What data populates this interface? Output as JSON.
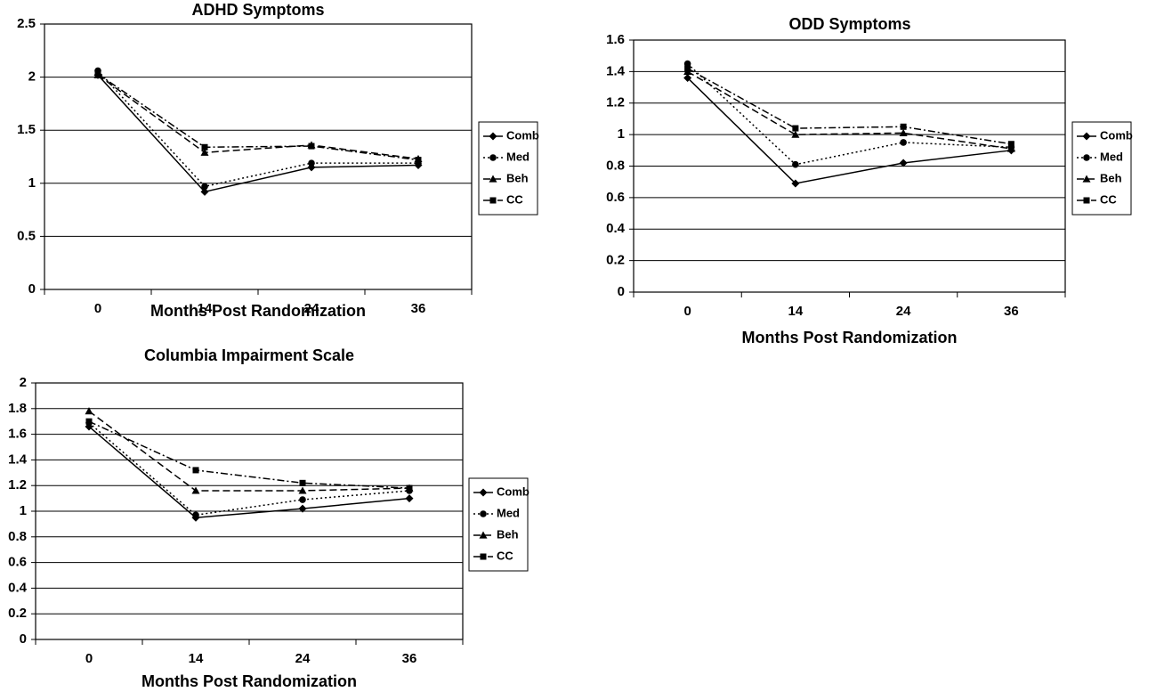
{
  "chart_data": [
    {
      "type": "line",
      "title": "ADHD Symptoms",
      "x_label": "Months Post Randomization",
      "categories": [
        "0",
        "14",
        "24",
        "36"
      ],
      "ylim": [
        0,
        2.5
      ],
      "yticks": [
        0,
        0.5,
        1,
        1.5,
        2,
        2.5
      ],
      "grid": true,
      "legend": "right",
      "series": [
        {
          "name": "Comb",
          "color": "#000000",
          "dash": "solid",
          "marker": "diamond",
          "values": [
            2.02,
            0.92,
            1.15,
            1.17
          ]
        },
        {
          "name": "Med",
          "color": "#000000",
          "dash": "dotted",
          "marker": "circle",
          "values": [
            2.06,
            0.97,
            1.19,
            1.19
          ]
        },
        {
          "name": "Beh",
          "color": "#000000",
          "dash": "dashed",
          "marker": "triangle",
          "values": [
            2.02,
            1.29,
            1.36,
            1.23
          ]
        },
        {
          "name": "CC",
          "color": "#000000",
          "dash": "dashdot",
          "marker": "square",
          "values": [
            2.03,
            1.34,
            1.35,
            1.22
          ]
        }
      ]
    },
    {
      "type": "line",
      "title": "ODD Symptoms",
      "x_label": "Months Post Randomization",
      "categories": [
        "0",
        "14",
        "24",
        "36"
      ],
      "ylim": [
        0,
        1.6
      ],
      "yticks": [
        0,
        0.2,
        0.4,
        0.6,
        0.8,
        1,
        1.2,
        1.4,
        1.6
      ],
      "grid": true,
      "legend": "right",
      "series": [
        {
          "name": "Comb",
          "color": "#000000",
          "dash": "solid",
          "marker": "diamond",
          "values": [
            1.36,
            0.69,
            0.82,
            0.9
          ]
        },
        {
          "name": "Med",
          "color": "#000000",
          "dash": "dotted",
          "marker": "circle",
          "values": [
            1.45,
            0.81,
            0.95,
            0.92
          ]
        },
        {
          "name": "Beh",
          "color": "#000000",
          "dash": "dashed",
          "marker": "triangle",
          "values": [
            1.4,
            1.0,
            1.01,
            0.91
          ]
        },
        {
          "name": "CC",
          "color": "#000000",
          "dash": "dashdot",
          "marker": "square",
          "values": [
            1.42,
            1.04,
            1.05,
            0.94
          ]
        }
      ]
    },
    {
      "type": "line",
      "title": "Columbia Impairment Scale",
      "x_label": "Months Post Randomization",
      "categories": [
        "0",
        "14",
        "24",
        "36"
      ],
      "ylim": [
        0,
        2
      ],
      "yticks": [
        0,
        0.2,
        0.4,
        0.6,
        0.8,
        1,
        1.2,
        1.4,
        1.6,
        1.8,
        2
      ],
      "grid": true,
      "legend": "right",
      "series": [
        {
          "name": "Comb",
          "color": "#000000",
          "dash": "solid",
          "marker": "diamond",
          "values": [
            1.66,
            0.95,
            1.02,
            1.1
          ]
        },
        {
          "name": "Med",
          "color": "#000000",
          "dash": "dotted",
          "marker": "circle",
          "values": [
            1.69,
            0.97,
            1.09,
            1.16
          ]
        },
        {
          "name": "Beh",
          "color": "#000000",
          "dash": "dashed",
          "marker": "triangle",
          "values": [
            1.78,
            1.16,
            1.16,
            1.18
          ]
        },
        {
          "name": "CC",
          "color": "#000000",
          "dash": "dashdot",
          "marker": "square",
          "values": [
            1.7,
            1.32,
            1.22,
            1.18
          ]
        }
      ]
    }
  ]
}
